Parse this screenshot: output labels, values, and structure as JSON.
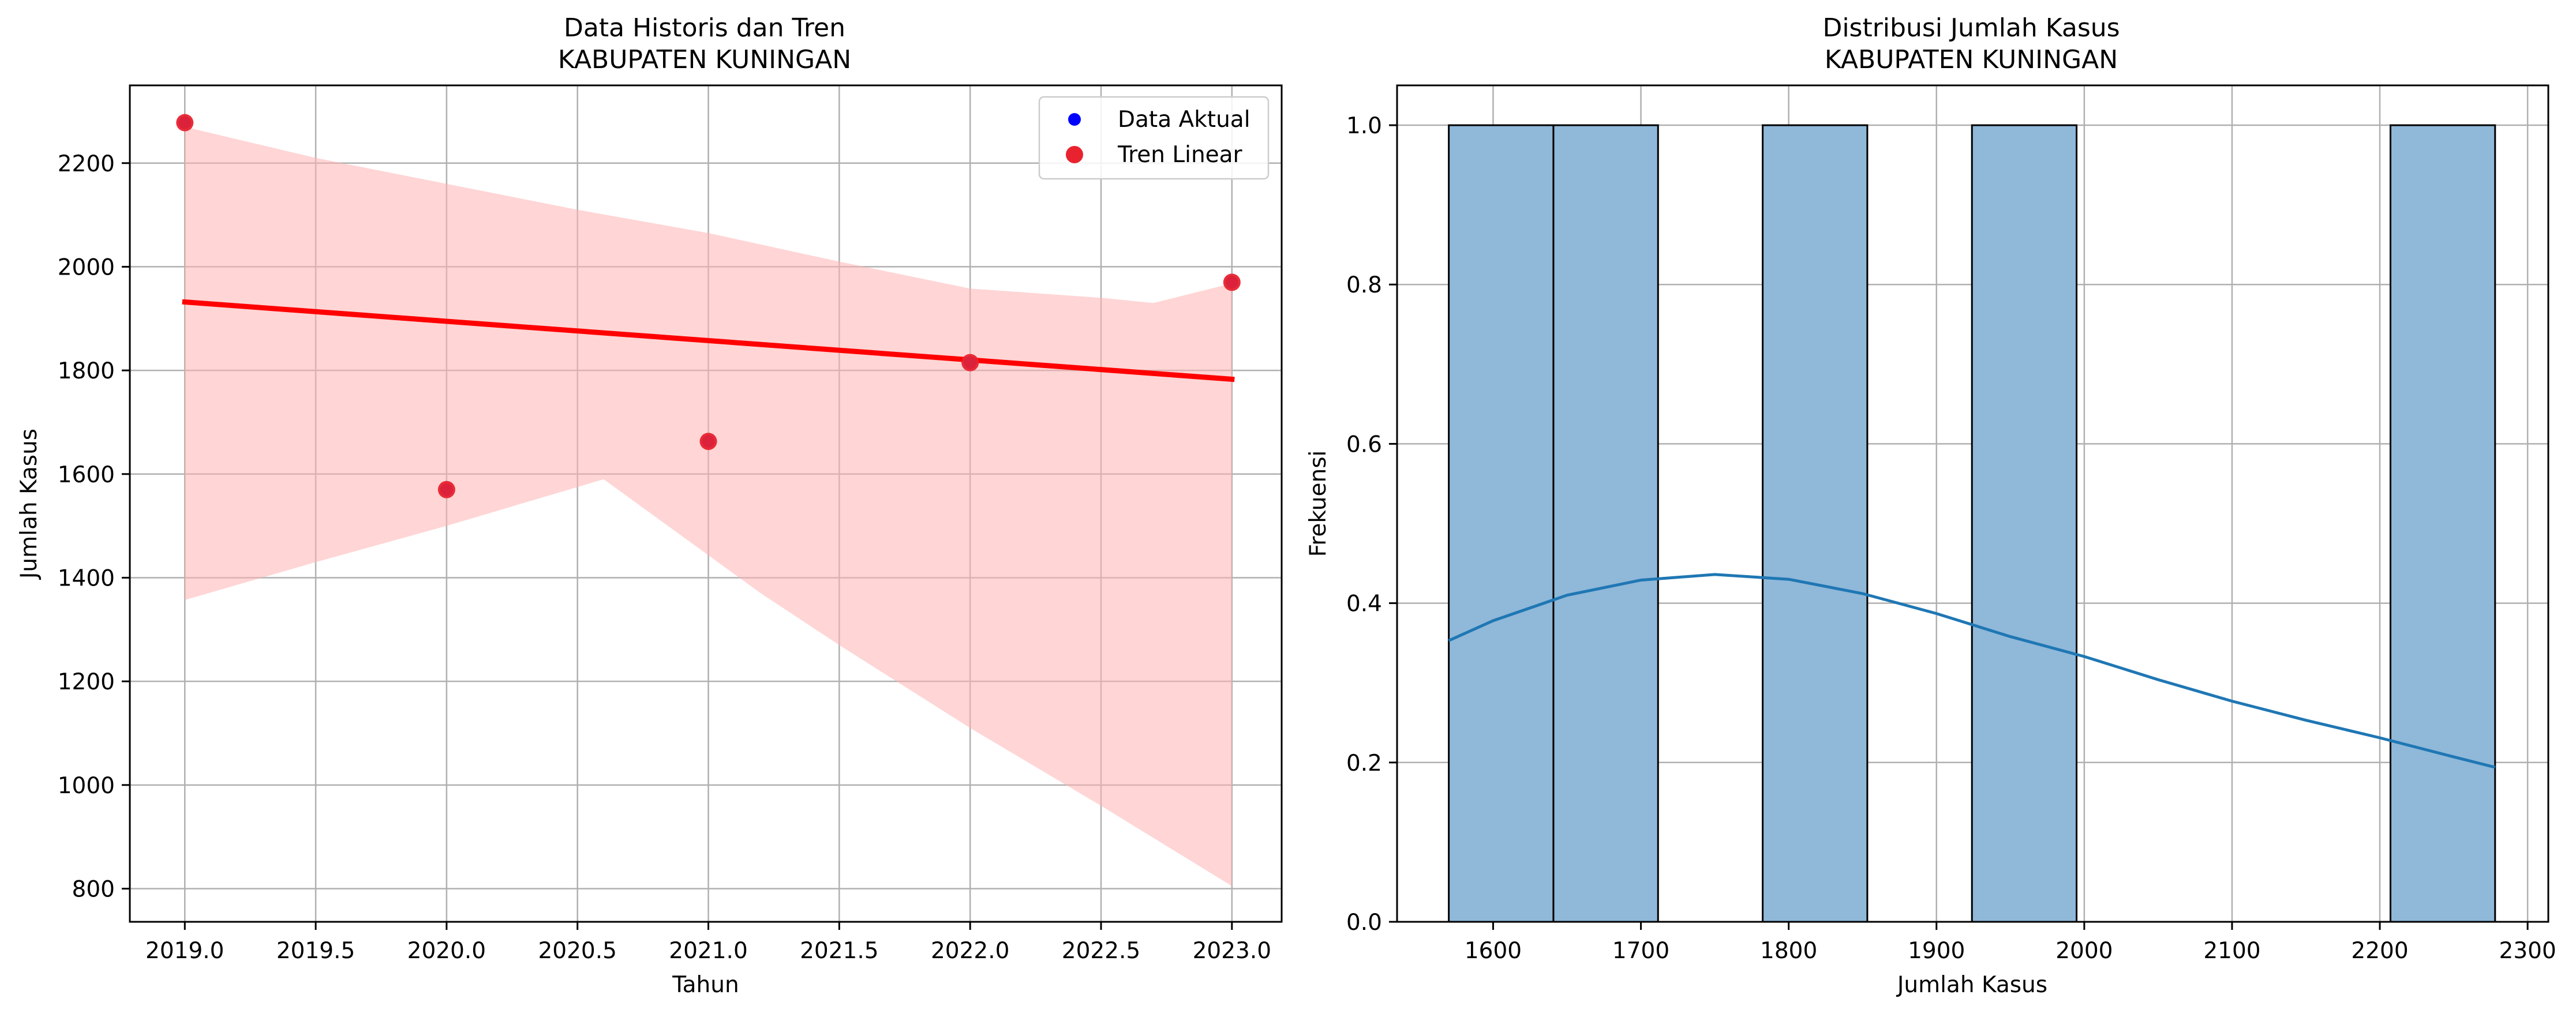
{
  "chart_data": [
    {
      "type": "scatter",
      "title": "Data Historis dan Tren",
      "subtitle": "KABUPATEN KUNINGAN",
      "xlabel": "Tahun",
      "ylabel": "Jumlah Kasus",
      "xlim": [
        2018.79,
        2023.19
      ],
      "ylim": [
        736,
        2350
      ],
      "xticks": [
        2019.0,
        2019.5,
        2020.0,
        2020.5,
        2021.0,
        2021.5,
        2022.0,
        2022.5,
        2023.0
      ],
      "xtick_labels": [
        "2019.0",
        "2019.5",
        "2020.0",
        "2020.5",
        "2021.0",
        "2021.5",
        "2022.0",
        "2022.5",
        "2023.0"
      ],
      "yticks": [
        800,
        1000,
        1200,
        1400,
        1600,
        1800,
        2000,
        2200
      ],
      "ytick_labels": [
        "800",
        "1000",
        "1200",
        "1400",
        "1600",
        "1800",
        "2000",
        "2200"
      ],
      "grid": true,
      "legend_position": "top-right",
      "series": [
        {
          "name": "Data Aktual",
          "kind": "scatter",
          "color": "#0000ff",
          "x": [
            2019,
            2020,
            2021,
            2022,
            2023
          ],
          "y": [
            2278,
            1570,
            1663,
            1815,
            1970
          ]
        },
        {
          "name": "Tren Linear",
          "kind": "regression",
          "color": "#ff0000",
          "marker_color": "#e8232f",
          "x": [
            2019,
            2020,
            2021,
            2022,
            2023
          ],
          "y": [
            2278,
            1570,
            1663,
            1815,
            1970
          ],
          "line": {
            "x": [
              2019,
              2023
            ],
            "y": [
              1932,
              1783
            ]
          },
          "ci_color": "#ffb3b3",
          "ci_upper": {
            "x": [
              2019,
              2019.5,
              2020,
              2020.5,
              2021,
              2021.5,
              2022,
              2022.5,
              2022.7,
              2023
            ],
            "y": [
              2270,
              2210,
              2160,
              2110,
              2065,
              2010,
              1958,
              1940,
              1930,
              1968
            ]
          },
          "ci_lower": {
            "x": [
              2019,
              2019.5,
              2020,
              2020.6,
              2021.2,
              2021.5,
              2022,
              2022.5,
              2023
            ],
            "y": [
              1357,
              1430,
              1500,
              1590,
              1370,
              1270,
              1110,
              960,
              805
            ]
          }
        }
      ]
    },
    {
      "type": "histogram",
      "title": "Distribusi Jumlah Kasus",
      "subtitle": "KABUPATEN KUNINGAN",
      "xlabel": "Jumlah Kasus",
      "ylabel": "Frekuensi",
      "xlim": [
        1535,
        2314
      ],
      "ylim": [
        0,
        1.05
      ],
      "xticks": [
        1600,
        1700,
        1800,
        1900,
        2000,
        2100,
        2200,
        2300
      ],
      "xtick_labels": [
        "1600",
        "1700",
        "1800",
        "1900",
        "2000",
        "2100",
        "2200",
        "2300"
      ],
      "yticks": [
        0.0,
        0.2,
        0.4,
        0.6,
        0.8,
        1.0
      ],
      "ytick_labels": [
        "0.0",
        "0.2",
        "0.4",
        "0.6",
        "0.8",
        "1.0"
      ],
      "grid": true,
      "bar_color": "#8fb8d9",
      "edge_color": "#000000",
      "bins": [
        {
          "start": 1570.0,
          "end": 1640.8,
          "count": 1
        },
        {
          "start": 1640.8,
          "end": 1711.6,
          "count": 1
        },
        {
          "start": 1711.6,
          "end": 1782.4,
          "count": 0
        },
        {
          "start": 1782.4,
          "end": 1853.2,
          "count": 1
        },
        {
          "start": 1853.2,
          "end": 1924.0,
          "count": 0
        },
        {
          "start": 1924.0,
          "end": 1994.8,
          "count": 1
        },
        {
          "start": 1994.8,
          "end": 2065.6,
          "count": 0
        },
        {
          "start": 2065.6,
          "end": 2136.4,
          "count": 0
        },
        {
          "start": 2136.4,
          "end": 2207.2,
          "count": 0
        },
        {
          "start": 2207.2,
          "end": 2278.0,
          "count": 1
        }
      ],
      "kde": {
        "color": "#1f77b4",
        "x": [
          1570,
          1600,
          1650,
          1700,
          1750,
          1800,
          1850,
          1900,
          1950,
          2000,
          2050,
          2100,
          2150,
          2200,
          2250,
          2278
        ],
        "y": [
          0.353,
          0.378,
          0.41,
          0.429,
          0.436,
          0.43,
          0.412,
          0.387,
          0.358,
          0.333,
          0.304,
          0.277,
          0.253,
          0.231,
          0.207,
          0.194
        ]
      }
    }
  ]
}
